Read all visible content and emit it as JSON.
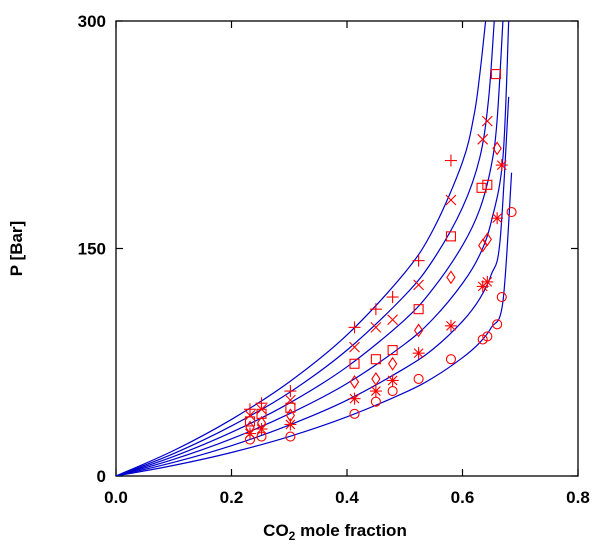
{
  "chart_data": {
    "type": "scatter",
    "title": "",
    "xlabel": "CO",
    "xlabel_subscript": "2",
    "xlabel_suffix": " mole fraction",
    "ylabel": "P [Bar]",
    "xlim": [
      0,
      0.8
    ],
    "ylim": [
      0,
      300
    ],
    "xticks": [
      0,
      0.2,
      0.4,
      0.6,
      0.8
    ],
    "xtick_labels": [
      "0.0",
      "0.2",
      "0.4",
      "0.6",
      "0.8"
    ],
    "yticks": [
      0,
      150,
      300
    ],
    "ytick_labels": [
      "0",
      "150",
      "300"
    ],
    "grid": false,
    "legend": "none",
    "line_color": "#0000cc",
    "marker_color": "#ff0000",
    "series": [
      {
        "marker": "plus",
        "points": [
          [
            0.232,
            44
          ],
          [
            0.252,
            48
          ],
          [
            0.302,
            56
          ],
          [
            0.413,
            98
          ],
          [
            0.45,
            110
          ],
          [
            0.479,
            118
          ],
          [
            0.524,
            142
          ],
          [
            0.58,
            208
          ]
        ],
        "curve": [
          [
            0,
            0
          ],
          [
            0.1,
            16.8
          ],
          [
            0.2,
            37.3
          ],
          [
            0.3,
            62
          ],
          [
            0.4,
            93
          ],
          [
            0.5,
            134
          ],
          [
            0.55,
            163
          ],
          [
            0.6,
            207
          ],
          [
            0.62,
            238
          ],
          [
            0.63,
            265
          ],
          [
            0.64,
            300
          ]
        ]
      },
      {
        "marker": "x",
        "points": [
          [
            0.232,
            40
          ],
          [
            0.252,
            44
          ],
          [
            0.302,
            50
          ],
          [
            0.413,
            85
          ],
          [
            0.45,
            98
          ],
          [
            0.479,
            103
          ],
          [
            0.524,
            126
          ],
          [
            0.58,
            182
          ],
          [
            0.635,
            222
          ],
          [
            0.643,
            234
          ]
        ],
        "curve": [
          [
            0,
            0
          ],
          [
            0.1,
            14.8
          ],
          [
            0.2,
            33
          ],
          [
            0.3,
            55
          ],
          [
            0.4,
            83
          ],
          [
            0.5,
            119
          ],
          [
            0.55,
            143
          ],
          [
            0.6,
            177
          ],
          [
            0.63,
            210
          ],
          [
            0.645,
            248
          ],
          [
            0.655,
            300
          ]
        ]
      },
      {
        "marker": "square",
        "points": [
          [
            0.232,
            36
          ],
          [
            0.252,
            41
          ],
          [
            0.302,
            45
          ],
          [
            0.413,
            74
          ],
          [
            0.45,
            77
          ],
          [
            0.479,
            83
          ],
          [
            0.524,
            110
          ],
          [
            0.58,
            158
          ],
          [
            0.633,
            190
          ],
          [
            0.643,
            192
          ],
          [
            0.658,
            265
          ]
        ],
        "curve": [
          [
            0,
            0
          ],
          [
            0.1,
            12.9
          ],
          [
            0.2,
            28.8
          ],
          [
            0.3,
            48
          ],
          [
            0.4,
            72
          ],
          [
            0.5,
            103
          ],
          [
            0.55,
            124
          ],
          [
            0.6,
            152
          ],
          [
            0.63,
            176
          ],
          [
            0.65,
            205
          ],
          [
            0.66,
            235
          ],
          [
            0.67,
            300
          ]
        ]
      },
      {
        "marker": "diamond",
        "points": [
          [
            0.232,
            32
          ],
          [
            0.252,
            35
          ],
          [
            0.302,
            40
          ],
          [
            0.413,
            62
          ],
          [
            0.45,
            64
          ],
          [
            0.479,
            74
          ],
          [
            0.524,
            96
          ],
          [
            0.58,
            131
          ],
          [
            0.635,
            152
          ],
          [
            0.643,
            156
          ],
          [
            0.66,
            216
          ]
        ],
        "curve": [
          [
            0,
            0
          ],
          [
            0.1,
            11
          ],
          [
            0.2,
            24.5
          ],
          [
            0.3,
            41
          ],
          [
            0.4,
            61
          ],
          [
            0.5,
            87
          ],
          [
            0.55,
            104
          ],
          [
            0.6,
            127
          ],
          [
            0.63,
            146
          ],
          [
            0.65,
            168
          ],
          [
            0.67,
            210
          ],
          [
            0.68,
            300
          ]
        ]
      },
      {
        "marker": "asterisk",
        "points": [
          [
            0.232,
            28
          ],
          [
            0.252,
            31
          ],
          [
            0.302,
            34
          ],
          [
            0.413,
            51
          ],
          [
            0.45,
            56
          ],
          [
            0.479,
            63
          ],
          [
            0.524,
            81
          ],
          [
            0.58,
            99
          ],
          [
            0.635,
            125
          ],
          [
            0.643,
            128
          ],
          [
            0.66,
            170
          ],
          [
            0.668,
            205
          ]
        ],
        "curve": [
          [
            0,
            0
          ],
          [
            0.1,
            9
          ],
          [
            0.2,
            20
          ],
          [
            0.3,
            33.6
          ],
          [
            0.4,
            50
          ],
          [
            0.5,
            71
          ],
          [
            0.55,
            84
          ],
          [
            0.6,
            102
          ],
          [
            0.63,
            117
          ],
          [
            0.65,
            133
          ],
          [
            0.665,
            155
          ],
          [
            0.68,
            250
          ]
        ]
      },
      {
        "marker": "circle",
        "points": [
          [
            0.232,
            24
          ],
          [
            0.252,
            26
          ],
          [
            0.302,
            26
          ],
          [
            0.413,
            41
          ],
          [
            0.45,
            49
          ],
          [
            0.479,
            56
          ],
          [
            0.524,
            64
          ],
          [
            0.58,
            77
          ],
          [
            0.635,
            90
          ],
          [
            0.643,
            92
          ],
          [
            0.66,
            100
          ],
          [
            0.668,
            118
          ],
          [
            0.685,
            174
          ]
        ],
        "curve": [
          [
            0,
            0
          ],
          [
            0.1,
            7
          ],
          [
            0.2,
            15.5
          ],
          [
            0.3,
            26
          ],
          [
            0.4,
            39
          ],
          [
            0.5,
            55
          ],
          [
            0.55,
            65
          ],
          [
            0.6,
            78
          ],
          [
            0.63,
            88
          ],
          [
            0.65,
            98
          ],
          [
            0.67,
            115
          ],
          [
            0.685,
            200
          ]
        ]
      }
    ]
  }
}
